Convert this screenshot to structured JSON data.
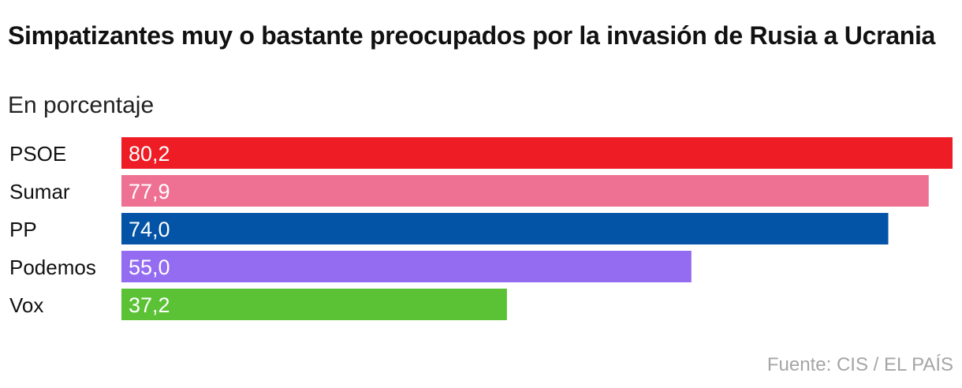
{
  "title": "Simpatizantes muy o bastante preocupados por la invasión de Rusia a Ucrania",
  "subtitle": "En porcentaje",
  "source": "Fuente: CIS / EL PAÍS",
  "chart_data": {
    "type": "bar",
    "orientation": "horizontal",
    "title": "Simpatizantes muy o bastante preocupados por la invasión de Rusia a Ucrania",
    "subtitle": "En porcentaje",
    "categories": [
      "PSOE",
      "Sumar",
      "PP",
      "Podemos",
      "Vox"
    ],
    "values": [
      80.2,
      77.9,
      74.0,
      55.0,
      37.2
    ],
    "value_labels": [
      "80,2",
      "77,9",
      "74,0",
      "55,0",
      "37,2"
    ],
    "colors": [
      "#ee1c25",
      "#ee7193",
      "#0354a6",
      "#946cf2",
      "#5bc236"
    ],
    "xlim": [
      0,
      80.2
    ],
    "grid": false,
    "legend": "none"
  }
}
